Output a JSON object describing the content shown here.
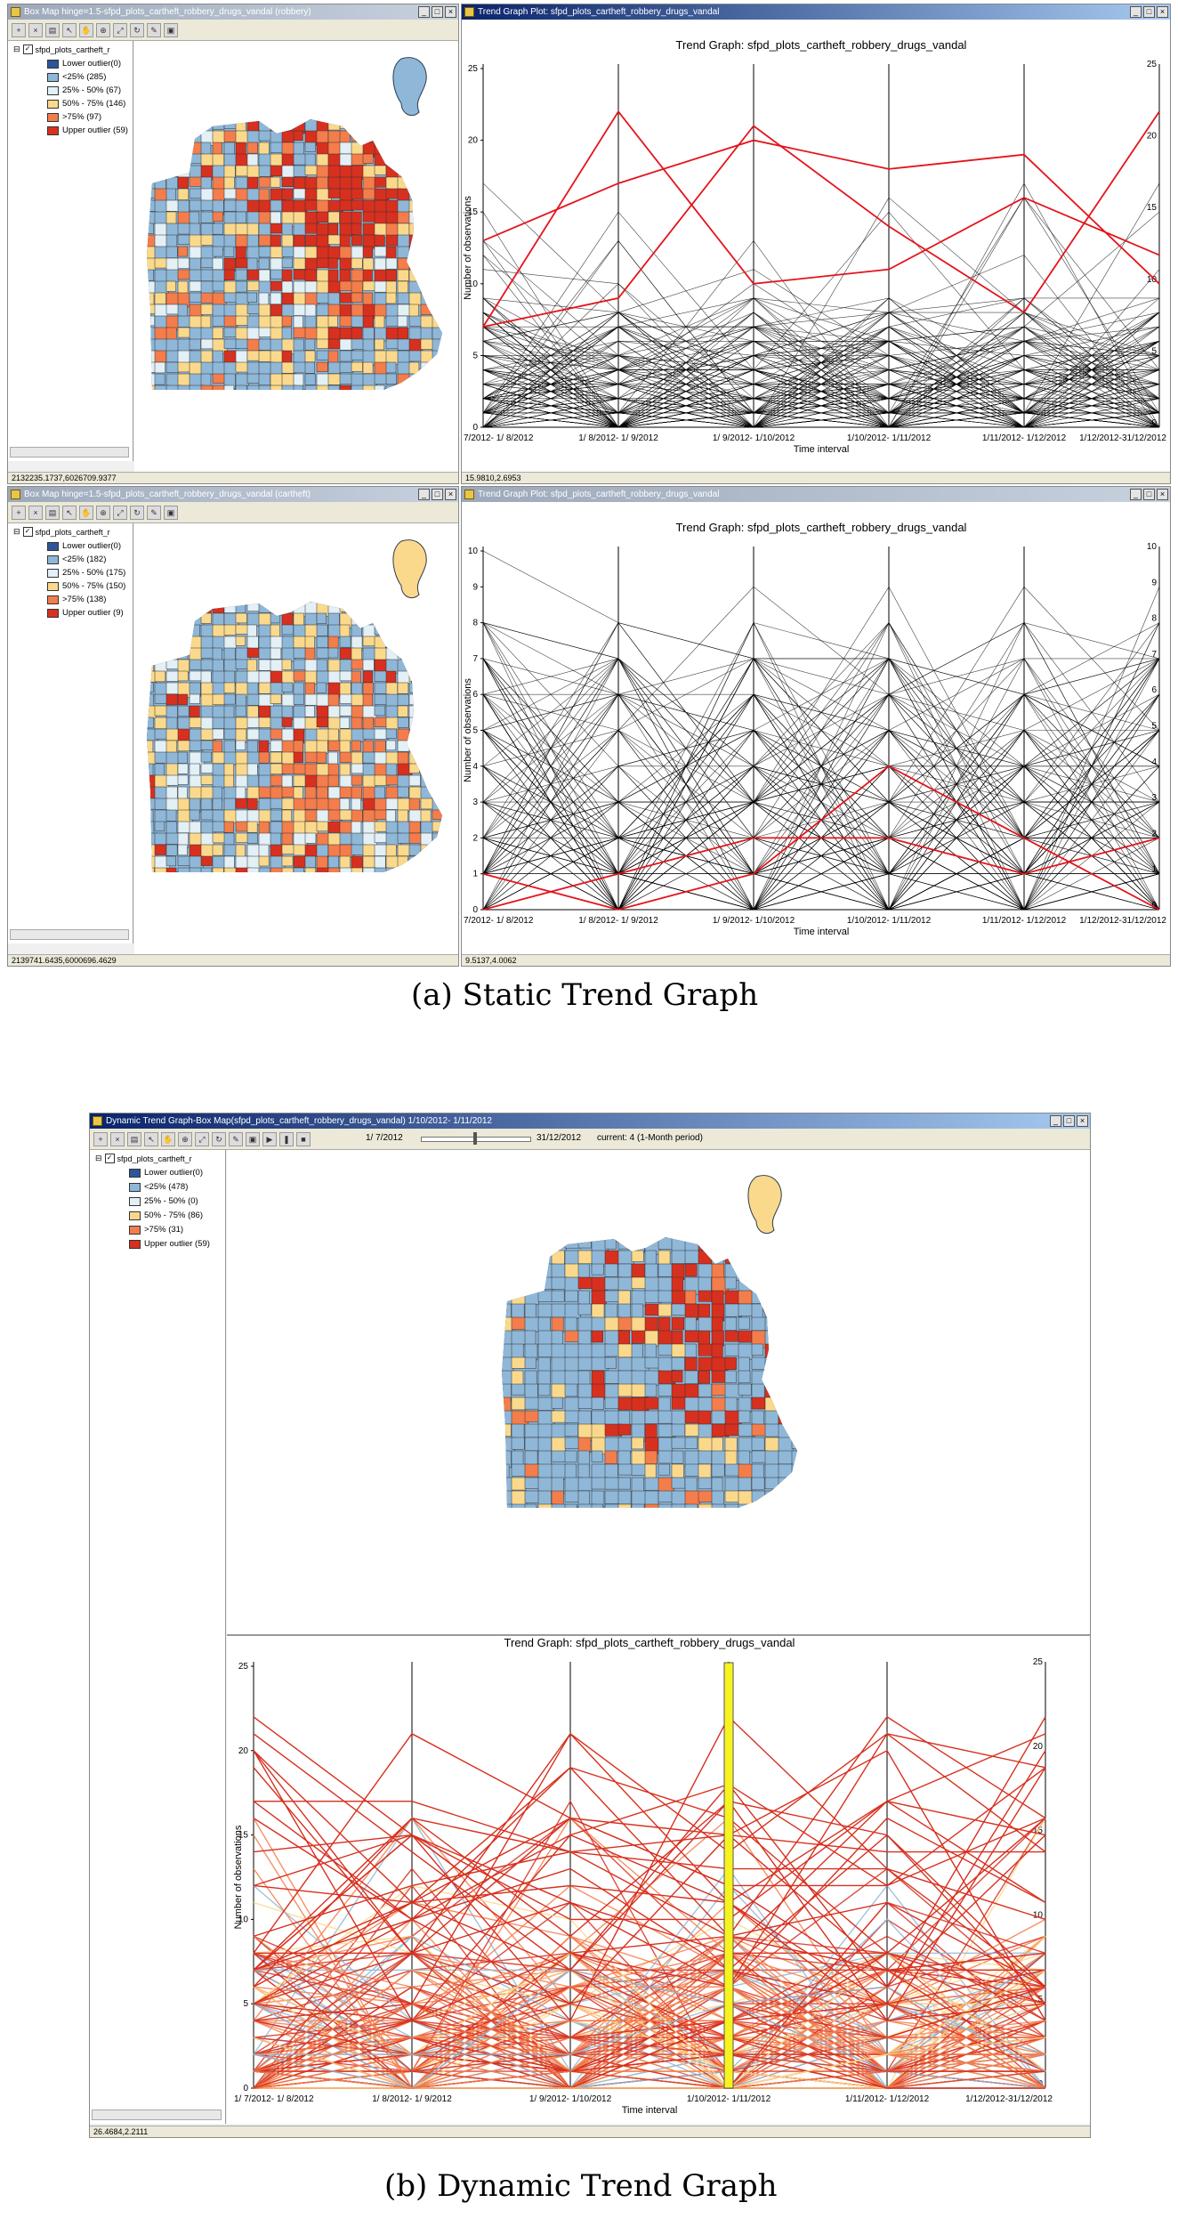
{
  "legend_labels": {
    "layer": "sfpd_plots_cartheft_r",
    "lower": "Lower outlier",
    "lt25": "<25%",
    "p25_50": "25% - 50%",
    "p50_75": "50% - 75%",
    "gt75": ">75%",
    "upper": "Upper outlier"
  },
  "colors": {
    "lower": "#2b579a",
    "lt25": "#8fb7d8",
    "p25_50": "#e3f0f6",
    "p50_75": "#fbd98c",
    "gt75": "#f47d4c",
    "upper": "#d7301f",
    "line": "#000000",
    "highlight": "#e4141b",
    "select_bar": "#f7f31e"
  },
  "windows": {
    "boxmap1": {
      "title": "Box Map hinge=1.5-sfpd_plots_cartheft_robbery_drugs_vandal (robbery)",
      "counts": [
        "Lower outlier(0)",
        "<25% (285)",
        "25% - 50% (67)",
        "50% - 75% (146)",
        ">75% (97)",
        "Upper outlier (59)"
      ],
      "status": "2132235.1737,6026709.9377"
    },
    "trend1": {
      "title": "Trend Graph Plot: sfpd_plots_cartheft_robbery_drugs_vandal",
      "status": "15.9810,2.6953"
    },
    "boxmap2": {
      "title": "Box Map hinge=1.5-sfpd_plots_cartheft_robbery_drugs_vandal (cartheft)",
      "counts": [
        "Lower outlier(0)",
        "<25% (182)",
        "25% - 50% (175)",
        "50% - 75% (150)",
        ">75% (138)",
        "Upper outlier (9)"
      ],
      "status": "2139741.6435,6000696.4629"
    },
    "trend2": {
      "title": "Trend Graph Plot: sfpd_plots_cartheft_robbery_drugs_vandal",
      "status": "9.5137,4.0062"
    },
    "dynamic": {
      "title": "Dynamic Trend Graph-Box Map(sfpd_plots_cartheft_robbery_drugs_vandal) 1/10/2012- 1/11/2012",
      "slider_start": "1/ 7/2012",
      "slider_end": "31/12/2012",
      "slider_current": "current: 4 (1-Month period)",
      "counts": [
        "Lower outlier(0)",
        "<25% (478)",
        "25% - 50% (0)",
        "50% - 75% (86)",
        ">75% (31)",
        "Upper outlier (59)"
      ],
      "status": "26.4684,2.2111"
    }
  },
  "captions": {
    "a": "(a) Static Trend Graph",
    "b": "(b) Dynamic Trend Graph"
  },
  "chart_data": [
    {
      "type": "line",
      "title": "Trend Graph: sfpd_plots_cartheft_robbery_drugs_vandal",
      "xlabel": "Time interval",
      "ylabel": "Number of observations",
      "categories": [
        "7/2012- 1/ 8/2012",
        "1/ 8/2012- 1/ 9/2012",
        "1/ 9/2012- 1/10/2012",
        "1/10/2012- 1/11/2012",
        "1/11/2012- 1/12/2012",
        "1/12/2012-31/12/2012"
      ],
      "ylim": [
        0,
        25
      ],
      "yticks": [
        0,
        5,
        10,
        15,
        20,
        25
      ],
      "highlighted_series": [
        [
          13,
          17,
          20,
          18,
          19,
          10
        ],
        [
          7,
          22,
          10,
          11,
          16,
          12
        ],
        [
          7,
          9,
          21,
          14,
          8,
          22
        ]
      ]
    },
    {
      "type": "line",
      "title": "Trend Graph: sfpd_plots_cartheft_robbery_drugs_vandal",
      "xlabel": "Time interval",
      "ylabel": "Number of observations",
      "categories": [
        "7/2012- 1/ 8/2012",
        "1/ 8/2012- 1/ 9/2012",
        "1/ 9/2012- 1/10/2012",
        "1/10/2012- 1/11/2012",
        "1/11/2012- 1/12/2012",
        "1/12/2012-31/12/2012"
      ],
      "ylim": [
        0,
        10
      ],
      "yticks": [
        0,
        1,
        2,
        3,
        4,
        5,
        6,
        7,
        8,
        9,
        10
      ],
      "highlighted_series": [
        [
          1,
          0,
          1,
          4,
          2,
          0
        ],
        [
          0,
          1,
          2,
          2,
          1,
          2
        ]
      ]
    },
    {
      "type": "line",
      "title": "Trend Graph: sfpd_plots_cartheft_robbery_drugs_vandal",
      "xlabel": "Time interval",
      "ylabel": "Number of observations",
      "categories": [
        "1/ 7/2012- 1/ 8/2012",
        "1/ 8/2012- 1/ 9/2012",
        "1/ 9/2012- 1/10/2012",
        "1/10/2012- 1/11/2012",
        "1/11/2012- 1/12/2012",
        "1/12/2012-31/12/2012"
      ],
      "ylim": [
        0,
        25
      ],
      "yticks": [
        0,
        5,
        10,
        15,
        20,
        25
      ],
      "selected_interval": "1/10/2012- 1/11/2012"
    }
  ]
}
